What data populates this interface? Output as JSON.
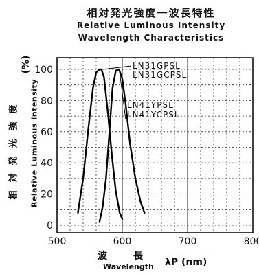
{
  "header": {
    "title_jp": "相対発光強度一波長特性",
    "title_en_line1": "Relative Luminous Intensity",
    "title_en_line2": "Wavelength Characteristics"
  },
  "y_label": {
    "jp": "相対発光強度",
    "en": "Relative Luminous Intensity",
    "unit": "(%)"
  },
  "x_label": {
    "jp": "波長",
    "en": "Wavelength",
    "symbol": "λP (nm)"
  },
  "chart_data": {
    "type": "line",
    "xlim": [
      500,
      800
    ],
    "ylim": [
      0,
      100
    ],
    "x_ticks": [
      500,
      600,
      700,
      800
    ],
    "y_ticks": [
      0,
      20,
      40,
      60,
      80,
      100
    ],
    "grid": true,
    "series": [
      {
        "name": "LN31GPSL / LN31GCPSL",
        "x": [
          532,
          540,
          548,
          555,
          560,
          565,
          568,
          572,
          578,
          584,
          590,
          596,
          600
        ],
        "y": [
          8,
          30,
          62,
          88,
          98,
          100,
          100,
          95,
          72,
          45,
          22,
          8,
          4
        ]
      },
      {
        "name": "LN41YPSL / LN41YCPSL",
        "x": [
          565,
          570,
          575,
          580,
          585,
          590,
          595,
          600,
          605,
          612,
          620,
          628,
          634
        ],
        "y": [
          2,
          12,
          30,
          58,
          88,
          99,
          100,
          94,
          78,
          52,
          30,
          15,
          8
        ]
      }
    ],
    "annotations": [
      {
        "lines": [
          "LN31GPSL",
          "LN31GCPSL"
        ]
      },
      {
        "lines": [
          "LN41YPSL",
          "LN41YCPSL"
        ]
      }
    ]
  }
}
